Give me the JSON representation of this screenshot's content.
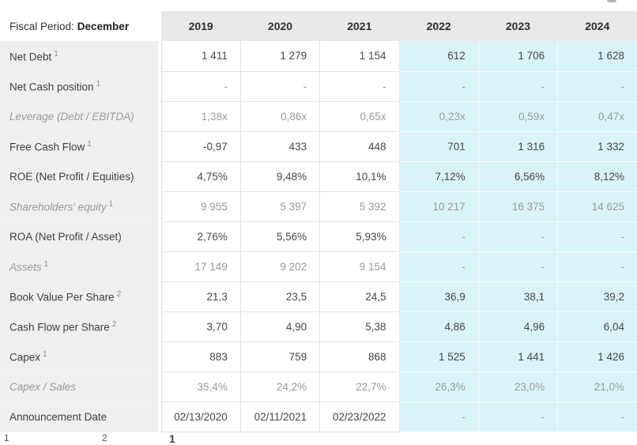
{
  "table": {
    "header": {
      "fiscal_period_label": "Fiscal Period:",
      "fiscal_period_value": "December",
      "years": [
        "2019",
        "2020",
        "2021",
        "2022",
        "2023",
        "2024"
      ]
    },
    "highlight_from_column": 3,
    "rows": [
      {
        "label": "Net Debt",
        "sup": "1",
        "style": "normal",
        "values": [
          "1 411",
          "1 279",
          "1 154",
          "612",
          "1 706",
          "1 628"
        ]
      },
      {
        "label": "Net Cash position",
        "sup": "1",
        "style": "normal",
        "values": [
          "-",
          "-",
          "-",
          "-",
          "-",
          "-"
        ]
      },
      {
        "label": "Leverage (Debt / EBITDA)",
        "sup": "",
        "style": "muted",
        "values": [
          "1,38x",
          "0,86x",
          "0,65x",
          "0,23x",
          "0,59x",
          "0,47x"
        ]
      },
      {
        "label": "Free Cash Flow",
        "sup": "1",
        "style": "normal",
        "values": [
          "-0,97",
          "433",
          "448",
          "701",
          "1 316",
          "1 332"
        ]
      },
      {
        "label": "ROE (Net Profit / Equities)",
        "sup": "",
        "style": "normal",
        "values": [
          "4,75%",
          "9,48%",
          "10,1%",
          "7,12%",
          "6,56%",
          "8,12%"
        ]
      },
      {
        "label": "Shareholders' equity",
        "sup": "1",
        "style": "muted",
        "values": [
          "9 955",
          "5 397",
          "5 392",
          "10 217",
          "16 375",
          "14 625"
        ]
      },
      {
        "label": "ROA (Net Profit / Asset)",
        "sup": "",
        "style": "normal",
        "values": [
          "2,76%",
          "5,56%",
          "5,93%",
          "-",
          "-",
          "-"
        ]
      },
      {
        "label": "Assets",
        "sup": "1",
        "style": "muted",
        "values": [
          "17 149",
          "9 202",
          "9 154",
          "-",
          "-",
          "-"
        ]
      },
      {
        "label": "Book Value Per Share",
        "sup": "2",
        "style": "normal",
        "values": [
          "21,3",
          "23,5",
          "24,5",
          "36,9",
          "38,1",
          "39,2"
        ]
      },
      {
        "label": "Cash Flow per Share",
        "sup": "2",
        "style": "normal",
        "values": [
          "3,70",
          "4,90",
          "5,38",
          "4,86",
          "4,96",
          "6,04"
        ]
      },
      {
        "label": "Capex",
        "sup": "1",
        "style": "normal",
        "values": [
          "883",
          "759",
          "868",
          "1 525",
          "1 441",
          "1 426"
        ]
      },
      {
        "label": "Capex / Sales",
        "sup": "",
        "style": "muted",
        "values": [
          "35,4%",
          "24,2%",
          "22,7%",
          "26,3%",
          "23,0%",
          "21,0%"
        ]
      },
      {
        "label": "Announcement Date",
        "sup": "",
        "style": "normal",
        "values": [
          "02/13/2020",
          "02/11/2021",
          "02/23/2022",
          "-",
          "-",
          "-"
        ]
      }
    ],
    "footnote_markers": [
      "1",
      "2",
      "1"
    ]
  },
  "colors": {
    "header_bg": "#e9e9e9",
    "label_bg": "#efefef",
    "estimate_bg": "#d9f4f7",
    "text_dark": "#474747",
    "text_muted": "#9a9a9a"
  }
}
